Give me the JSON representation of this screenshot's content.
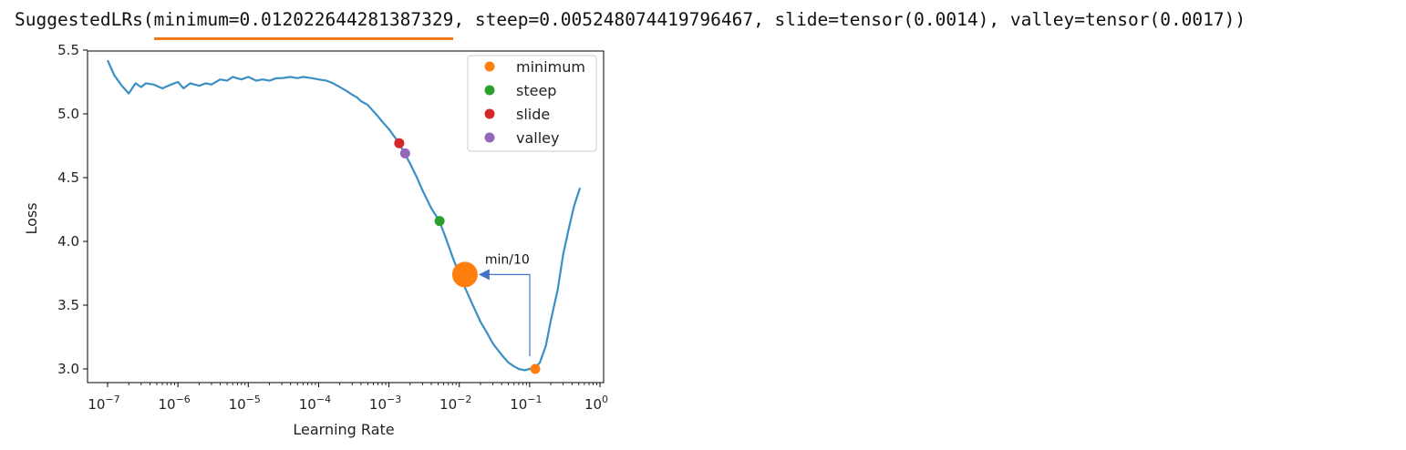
{
  "header": {
    "prefix": "SuggestedLRs(",
    "highlight": "minimum=0.012022644281387329",
    "suffix": ", steep=0.005248074419796467, slide=tensor(0.0014), valley=tensor(0.0017))",
    "underline_color": "#f07a1a"
  },
  "chart_data": {
    "type": "line",
    "xlabel": "Learning Rate",
    "ylabel": "Loss",
    "xscale": "log",
    "xlim": [
      1e-07,
      1
    ],
    "ylim": [
      2.9,
      5.5
    ],
    "xticks": [
      1e-07,
      1e-06,
      1e-05,
      0.0001,
      0.001,
      0.01,
      0.1,
      1
    ],
    "xtick_labels": [
      {
        "base": "10",
        "exp": "−7"
      },
      {
        "base": "10",
        "exp": "−6"
      },
      {
        "base": "10",
        "exp": "−5"
      },
      {
        "base": "10",
        "exp": "−4"
      },
      {
        "base": "10",
        "exp": "−3"
      },
      {
        "base": "10",
        "exp": "−2"
      },
      {
        "base": "10",
        "exp": "−1"
      },
      {
        "base": "10",
        "exp": "0"
      }
    ],
    "yticks": [
      3.0,
      3.5,
      4.0,
      4.5,
      5.0,
      5.5
    ],
    "ytick_labels": [
      "3.0",
      "3.5",
      "4.0",
      "4.5",
      "5.0",
      "5.5"
    ],
    "line_color": "#3a8fc5",
    "series": [
      {
        "x": [
          1e-07,
          1.25e-07,
          1.6e-07,
          2e-07,
          2.5e-07,
          3e-07,
          3.5e-07,
          4.5e-07,
          6e-07,
          8e-07,
          1e-06,
          1.2e-06,
          1.5e-06,
          2e-06,
          2.5e-06,
          3e-06,
          4e-06,
          5e-06,
          6e-06,
          8e-06,
          1e-05,
          1.3e-05,
          1.6e-05,
          2e-05,
          2.5e-05,
          3e-05,
          4e-05,
          5e-05,
          6e-05,
          8e-05,
          0.0001,
          0.00013,
          0.00016,
          0.0002,
          0.00025,
          0.0003,
          0.00035,
          0.0004,
          0.0005,
          0.0006,
          0.0007,
          0.0008,
          0.001,
          0.0012,
          0.0014,
          0.0017,
          0.002,
          0.0025,
          0.003,
          0.004,
          0.0052,
          0.0065,
          0.008,
          0.01,
          0.012,
          0.015,
          0.02,
          0.025,
          0.03,
          0.04,
          0.05,
          0.06,
          0.07,
          0.085,
          0.1,
          0.12,
          0.14,
          0.17,
          0.2,
          0.25,
          0.3,
          0.36,
          0.43,
          0.52
        ],
        "y": [
          5.42,
          5.3,
          5.22,
          5.16,
          5.24,
          5.21,
          5.24,
          5.23,
          5.2,
          5.23,
          5.25,
          5.2,
          5.24,
          5.22,
          5.24,
          5.23,
          5.27,
          5.26,
          5.29,
          5.27,
          5.29,
          5.26,
          5.27,
          5.26,
          5.28,
          5.28,
          5.29,
          5.28,
          5.29,
          5.28,
          5.27,
          5.26,
          5.24,
          5.21,
          5.18,
          5.15,
          5.13,
          5.1,
          5.07,
          5.02,
          4.98,
          4.94,
          4.88,
          4.82,
          4.77,
          4.68,
          4.61,
          4.5,
          4.4,
          4.26,
          4.16,
          4.02,
          3.88,
          3.74,
          3.64,
          3.52,
          3.37,
          3.28,
          3.2,
          3.11,
          3.05,
          3.02,
          3.0,
          2.99,
          3.0,
          3.01,
          3.05,
          3.18,
          3.38,
          3.62,
          3.9,
          4.1,
          4.28,
          4.42
        ]
      }
    ],
    "markers": [
      {
        "name": "minimum",
        "x": 0.12022644281387329,
        "y": 3.0,
        "color": "#ff7f0e"
      },
      {
        "name": "steep",
        "x": 0.005248074419796467,
        "y": 4.16,
        "color": "#2ca02c"
      },
      {
        "name": "slide",
        "x": 0.0014,
        "y": 4.77,
        "color": "#d62728"
      },
      {
        "name": "valley",
        "x": 0.0017,
        "y": 4.69,
        "color": "#9467bd"
      }
    ],
    "annotation": {
      "text": "min/10",
      "x": 0.012022644281387329,
      "y": 3.74,
      "color": "#ff7f0e",
      "arrow_color": "#4472c4"
    },
    "legend_position": "top-right"
  }
}
